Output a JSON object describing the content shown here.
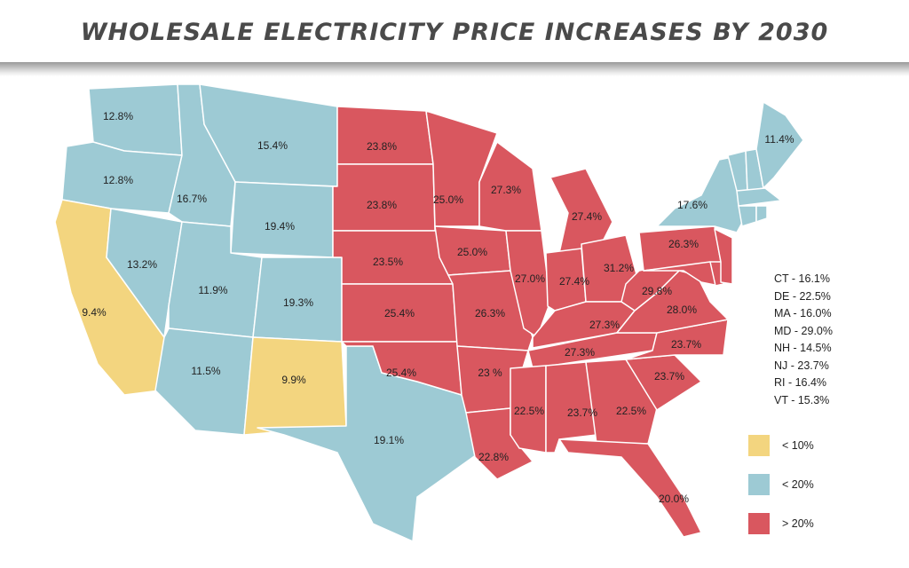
{
  "title": "WHOLESALE ELECTRICITY PRICE INCREASES BY 2030",
  "colors": {
    "low": "#f3d57f",
    "mid": "#9dcad4",
    "high": "#d9575f"
  },
  "states": {
    "WA": "12.8%",
    "OR": "12.8%",
    "CA": "9.4%",
    "NV": "13.2%",
    "ID": "16.7%",
    "MT": "15.4%",
    "WY": "19.4%",
    "UT": "11.9%",
    "CO": "19.3%",
    "AZ": "11.5%",
    "NM": "9.9%",
    "TX": "19.1%",
    "ND": "23.8%",
    "SD": "23.8%",
    "NE": "23.5%",
    "KS": "25.4%",
    "OK": "25.4%",
    "MN": "25.0%",
    "IA": "25.0%",
    "MO": "26.3%",
    "AR": "23 %",
    "LA": "22.8%",
    "WI": "27.3%",
    "MI": "27.4%",
    "IL": "27.0%",
    "IN": "27.4%",
    "OH": "31.2%",
    "KY": "27.3%",
    "TN": "27.3%",
    "MS": "22.5%",
    "AL": "23.7%",
    "GA": "22.5%",
    "FL": "20.0%",
    "SC": "23.7%",
    "NC": "23.7%",
    "VA": "28.0%",
    "WV": "29.8%",
    "PA": "26.3%",
    "NY": "17.6%",
    "ME": "11.4%"
  },
  "small_states": [
    "CT - 16.1%",
    "DE - 22.5%",
    "MA - 16.0%",
    "MD - 29.0%",
    "NH - 14.5%",
    "NJ - 23.7%",
    "RI - 16.4%",
    "VT - 15.3%"
  ],
  "legend": [
    "< 10%",
    "< 20%",
    "> 20%"
  ]
}
